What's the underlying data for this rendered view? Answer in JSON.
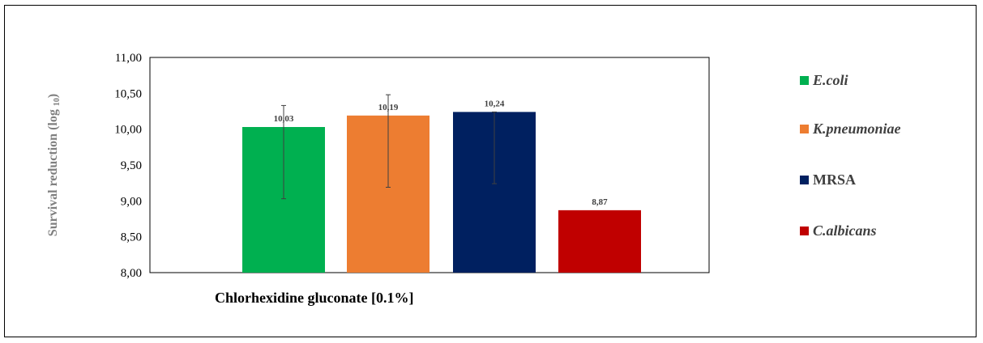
{
  "chart_data": {
    "type": "bar",
    "categories": [
      "Chlorhexidine gluconate [0.1%]"
    ],
    "ylabel_main": "Survival reduction (log",
    "ylabel_sub": "10",
    "ylabel_close": ")",
    "ylim": [
      8.0,
      11.0
    ],
    "yticks": [
      "8,00",
      "8,50",
      "9,00",
      "9,50",
      "10,00",
      "10,50",
      "11,00"
    ],
    "ytick_values": [
      8.0,
      8.5,
      9.0,
      9.5,
      10.0,
      10.5,
      11.0
    ],
    "grid": false,
    "legend_position": "right",
    "series": [
      {
        "name": "E.coli",
        "value": 10.03,
        "label": "10,03",
        "error_low": 9.03,
        "error_high": 10.33,
        "color": "#00b050",
        "italic": true
      },
      {
        "name": "K.pneumoniae",
        "value": 10.19,
        "label": "10,19",
        "error_low": 9.19,
        "error_high": 10.48,
        "color": "#ed7d31",
        "italic": true
      },
      {
        "name": "MRSA",
        "value": 10.24,
        "label": "10,24",
        "error_low": 9.24,
        "error_high": 10.24,
        "color": "#002060",
        "italic": false
      },
      {
        "name": "C.albicans",
        "value": 8.87,
        "label": "8,87",
        "error_low": null,
        "error_high": null,
        "color": "#c00000",
        "italic": true
      }
    ]
  }
}
